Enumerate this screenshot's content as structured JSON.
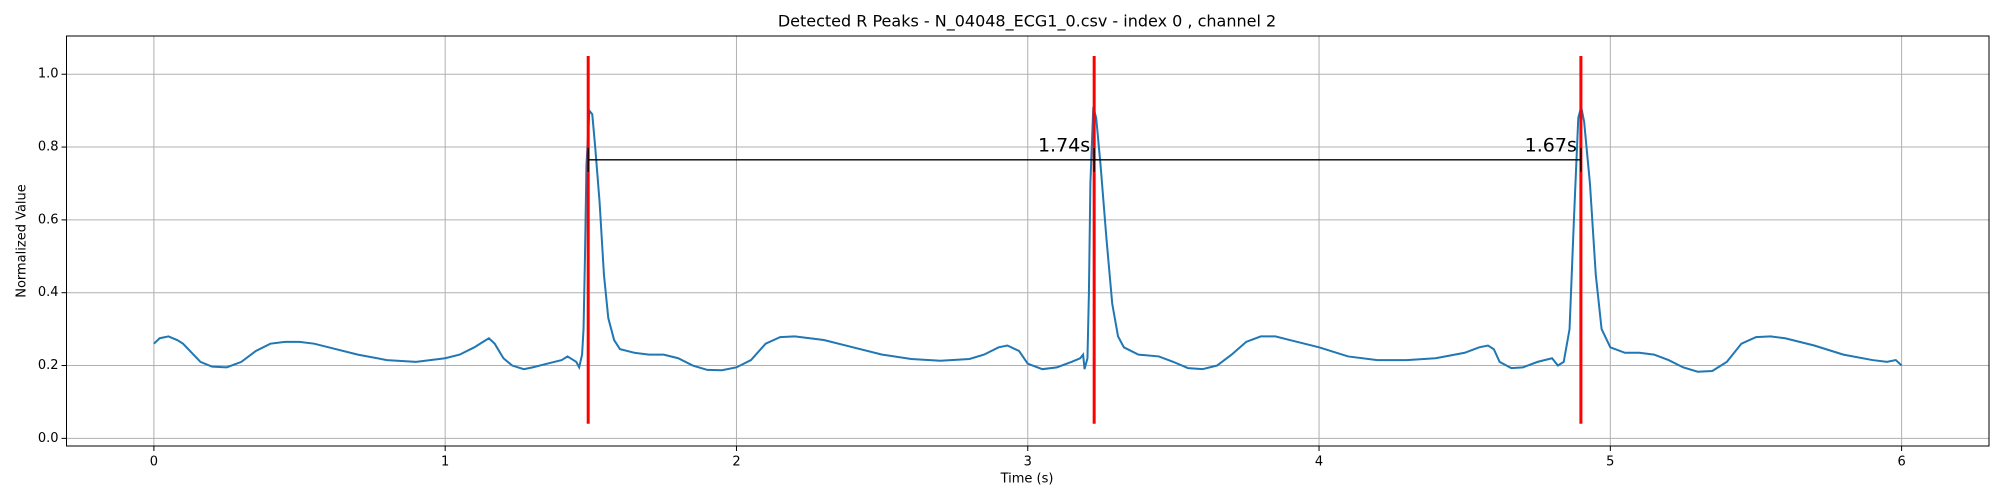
{
  "chart_data": {
    "type": "line",
    "title": "Detected R Peaks - N_04048_ECG1_0.csv - index 0 , channel 2",
    "xlabel": "Time (s)",
    "ylabel": "Normalized Value",
    "x": [
      0,
      0.02,
      0.05,
      0.08,
      0.1,
      0.13,
      0.16,
      0.2,
      0.25,
      0.3,
      0.35,
      0.4,
      0.45,
      0.5,
      0.55,
      0.6,
      0.7,
      0.8,
      0.9,
      1.0,
      1.05,
      1.1,
      1.13,
      1.15,
      1.17,
      1.2,
      1.23,
      1.27,
      1.3,
      1.35,
      1.4,
      1.42,
      1.44,
      1.45,
      1.46,
      1.47,
      1.475,
      1.48,
      1.485,
      1.495,
      1.505,
      1.515,
      1.53,
      1.545,
      1.56,
      1.58,
      1.6,
      1.65,
      1.7,
      1.75,
      1.8,
      1.85,
      1.9,
      1.95,
      2.0,
      2.05,
      2.1,
      2.15,
      2.2,
      2.3,
      2.4,
      2.5,
      2.6,
      2.7,
      2.8,
      2.85,
      2.9,
      2.93,
      2.97,
      3.0,
      3.05,
      3.1,
      3.15,
      3.18,
      3.19,
      3.195,
      3.205,
      3.21,
      3.215,
      3.225,
      3.235,
      3.25,
      3.27,
      3.29,
      3.31,
      3.33,
      3.38,
      3.45,
      3.5,
      3.55,
      3.6,
      3.65,
      3.7,
      3.75,
      3.8,
      3.85,
      3.9,
      4.0,
      4.1,
      4.2,
      4.3,
      4.4,
      4.5,
      4.55,
      4.58,
      4.6,
      4.62,
      4.66,
      4.7,
      4.75,
      4.8,
      4.82,
      4.84,
      4.86,
      4.875,
      4.89,
      4.9,
      4.91,
      4.93,
      4.95,
      4.97,
      5.0,
      5.05,
      5.1,
      5.15,
      5.2,
      5.25,
      5.3,
      5.35,
      5.4,
      5.45,
      5.5,
      5.55,
      5.6,
      5.7,
      5.8,
      5.9,
      5.95,
      5.98,
      6.0
    ],
    "series": [
      {
        "color": "#1f77b4",
        "values": [
          0.26,
          0.275,
          0.28,
          0.27,
          0.26,
          0.235,
          0.21,
          0.197,
          0.195,
          0.21,
          0.24,
          0.26,
          0.265,
          0.265,
          0.26,
          0.25,
          0.23,
          0.215,
          0.21,
          0.22,
          0.23,
          0.25,
          0.265,
          0.275,
          0.26,
          0.22,
          0.2,
          0.19,
          0.195,
          0.205,
          0.215,
          0.225,
          0.215,
          0.21,
          0.195,
          0.23,
          0.3,
          0.5,
          0.75,
          0.9,
          0.89,
          0.8,
          0.65,
          0.45,
          0.33,
          0.27,
          0.245,
          0.235,
          0.23,
          0.23,
          0.22,
          0.2,
          0.188,
          0.187,
          0.195,
          0.215,
          0.26,
          0.278,
          0.28,
          0.27,
          0.25,
          0.23,
          0.218,
          0.213,
          0.218,
          0.23,
          0.25,
          0.255,
          0.24,
          0.205,
          0.19,
          0.195,
          0.21,
          0.22,
          0.23,
          0.19,
          0.22,
          0.4,
          0.7,
          0.91,
          0.88,
          0.75,
          0.55,
          0.37,
          0.28,
          0.25,
          0.23,
          0.225,
          0.21,
          0.193,
          0.19,
          0.2,
          0.23,
          0.265,
          0.28,
          0.28,
          0.27,
          0.25,
          0.225,
          0.215,
          0.215,
          0.22,
          0.235,
          0.25,
          0.255,
          0.245,
          0.21,
          0.193,
          0.195,
          0.21,
          0.22,
          0.2,
          0.21,
          0.3,
          0.6,
          0.88,
          0.91,
          0.87,
          0.7,
          0.45,
          0.3,
          0.25,
          0.235,
          0.235,
          0.23,
          0.215,
          0.195,
          0.183,
          0.185,
          0.21,
          0.26,
          0.278,
          0.28,
          0.275,
          0.255,
          0.23,
          0.215,
          0.21,
          0.215,
          0.2
        ]
      }
    ],
    "r_peaks": {
      "x": [
        1.491,
        3.228,
        4.899
      ],
      "ymin": 0.04,
      "ymax": 1.05,
      "color": "red"
    },
    "interval_line_y": 0.765,
    "intervals": [
      {
        "value": 1.74,
        "label": "1.74s"
      },
      {
        "value": 1.67,
        "label": "1.67s"
      }
    ],
    "xlim": [
      -0.3,
      6.3
    ],
    "ylim": [
      -0.021,
      1.105
    ],
    "xticks": [
      0,
      1,
      2,
      3,
      4,
      5,
      6
    ],
    "yticks": [
      {
        "value": 0,
        "label": "0.0"
      },
      {
        "value": 0.2,
        "label": "0.2"
      },
      {
        "value": 0.4,
        "label": "0.4"
      },
      {
        "value": 0.6,
        "label": "0.6"
      },
      {
        "value": 0.8,
        "label": "0.8"
      },
      {
        "value": 1,
        "label": "1.0"
      }
    ],
    "grid": true
  }
}
